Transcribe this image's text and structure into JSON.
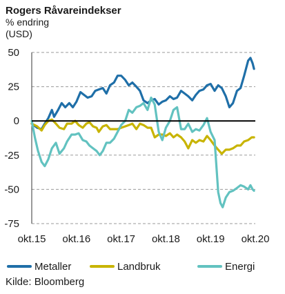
{
  "chart_data": {
    "type": "line",
    "title": "Rogers Råvareindekser",
    "subtitle_1": "% endring",
    "subtitle_2": "(USD)",
    "source": "Kilde: Bloomberg",
    "ylim": [
      -75,
      50
    ],
    "yticks": [
      "50",
      "25",
      "0",
      "-25",
      "-50",
      "-75"
    ],
    "ytick_values": [
      50,
      25,
      0,
      -25,
      -50,
      -75
    ],
    "xlim": [
      2015.83,
      2020.83
    ],
    "xticks": [
      "okt.15",
      "okt.16",
      "okt.17",
      "okt.18",
      "okt.19",
      "okt.20"
    ],
    "xtick_values": [
      2015.83,
      2016.83,
      2017.83,
      2018.83,
      2019.83,
      2020.83
    ],
    "grid": "horizontal dashed",
    "legend_position": "bottom",
    "series": [
      {
        "name": "Metaller",
        "color": "#1f6fa8",
        "points": [
          [
            2015.83,
            -2
          ],
          [
            2015.95,
            -5
          ],
          [
            2016.05,
            -6
          ],
          [
            2016.12,
            -2
          ],
          [
            2016.2,
            2
          ],
          [
            2016.28,
            8
          ],
          [
            2016.33,
            3
          ],
          [
            2016.42,
            8
          ],
          [
            2016.5,
            13
          ],
          [
            2016.58,
            10
          ],
          [
            2016.67,
            13
          ],
          [
            2016.75,
            10
          ],
          [
            2016.83,
            14
          ],
          [
            2016.92,
            21
          ],
          [
            2017.0,
            19
          ],
          [
            2017.08,
            17
          ],
          [
            2017.17,
            18
          ],
          [
            2017.25,
            22
          ],
          [
            2017.33,
            23
          ],
          [
            2017.42,
            24
          ],
          [
            2017.5,
            20
          ],
          [
            2017.58,
            26
          ],
          [
            2017.67,
            28
          ],
          [
            2017.75,
            33
          ],
          [
            2017.83,
            33
          ],
          [
            2017.92,
            30
          ],
          [
            2018.0,
            26
          ],
          [
            2018.08,
            28
          ],
          [
            2018.17,
            25
          ],
          [
            2018.25,
            22
          ],
          [
            2018.33,
            15
          ],
          [
            2018.42,
            13
          ],
          [
            2018.5,
            15
          ],
          [
            2018.58,
            16
          ],
          [
            2018.67,
            12
          ],
          [
            2018.75,
            14
          ],
          [
            2018.83,
            15
          ],
          [
            2018.92,
            18
          ],
          [
            2019.0,
            16
          ],
          [
            2019.08,
            17
          ],
          [
            2019.17,
            22
          ],
          [
            2019.25,
            20
          ],
          [
            2019.33,
            18
          ],
          [
            2019.42,
            15
          ],
          [
            2019.5,
            19
          ],
          [
            2019.58,
            22
          ],
          [
            2019.67,
            23
          ],
          [
            2019.75,
            26
          ],
          [
            2019.83,
            27
          ],
          [
            2019.92,
            22
          ],
          [
            2020.0,
            26
          ],
          [
            2020.08,
            24
          ],
          [
            2020.17,
            18
          ],
          [
            2020.25,
            10
          ],
          [
            2020.33,
            13
          ],
          [
            2020.42,
            22
          ],
          [
            2020.5,
            24
          ],
          [
            2020.58,
            33
          ],
          [
            2020.67,
            44
          ],
          [
            2020.72,
            46
          ],
          [
            2020.77,
            42
          ],
          [
            2020.8,
            38
          ]
        ]
      },
      {
        "name": "Landbruk",
        "color": "#c8b400",
        "points": [
          [
            2015.83,
            -2
          ],
          [
            2015.95,
            -4
          ],
          [
            2016.05,
            -7
          ],
          [
            2016.12,
            -3
          ],
          [
            2016.2,
            0
          ],
          [
            2016.28,
            1
          ],
          [
            2016.37,
            -2
          ],
          [
            2016.45,
            -5
          ],
          [
            2016.55,
            -6
          ],
          [
            2016.62,
            -2
          ],
          [
            2016.72,
            -2
          ],
          [
            2016.8,
            0
          ],
          [
            2016.88,
            -3
          ],
          [
            2016.97,
            -5
          ],
          [
            2017.05,
            -2
          ],
          [
            2017.12,
            -1
          ],
          [
            2017.2,
            -4
          ],
          [
            2017.28,
            -5
          ],
          [
            2017.33,
            -8
          ],
          [
            2017.42,
            -4
          ],
          [
            2017.5,
            -3
          ],
          [
            2017.58,
            -6
          ],
          [
            2017.67,
            -6
          ],
          [
            2017.75,
            -6
          ],
          [
            2017.83,
            -5
          ],
          [
            2017.92,
            -4
          ],
          [
            2018.0,
            -3
          ],
          [
            2018.08,
            -2
          ],
          [
            2018.17,
            -6
          ],
          [
            2018.25,
            -2
          ],
          [
            2018.33,
            -3
          ],
          [
            2018.42,
            -5
          ],
          [
            2018.5,
            -5
          ],
          [
            2018.58,
            -12
          ],
          [
            2018.67,
            -10
          ],
          [
            2018.75,
            -10
          ],
          [
            2018.83,
            -11
          ],
          [
            2018.92,
            -9
          ],
          [
            2019.0,
            -12
          ],
          [
            2019.08,
            -10
          ],
          [
            2019.17,
            -12
          ],
          [
            2019.25,
            -15
          ],
          [
            2019.33,
            -20
          ],
          [
            2019.42,
            -14
          ],
          [
            2019.5,
            -16
          ],
          [
            2019.58,
            -14
          ],
          [
            2019.67,
            -15
          ],
          [
            2019.75,
            -11
          ],
          [
            2019.83,
            -14
          ],
          [
            2019.92,
            -18
          ],
          [
            2020.0,
            -21
          ],
          [
            2020.08,
            -24
          ],
          [
            2020.17,
            -21
          ],
          [
            2020.25,
            -21
          ],
          [
            2020.33,
            -20
          ],
          [
            2020.42,
            -18
          ],
          [
            2020.5,
            -18
          ],
          [
            2020.58,
            -15
          ],
          [
            2020.67,
            -14
          ],
          [
            2020.75,
            -12
          ],
          [
            2020.8,
            -12
          ]
        ]
      },
      {
        "name": "Energi",
        "color": "#62c2c0",
        "points": [
          [
            2015.83,
            0
          ],
          [
            2015.9,
            -12
          ],
          [
            2015.97,
            -22
          ],
          [
            2016.05,
            -30
          ],
          [
            2016.12,
            -33
          ],
          [
            2016.2,
            -28
          ],
          [
            2016.28,
            -20
          ],
          [
            2016.37,
            -16
          ],
          [
            2016.45,
            -24
          ],
          [
            2016.55,
            -20
          ],
          [
            2016.62,
            -15
          ],
          [
            2016.72,
            -10
          ],
          [
            2016.8,
            -10
          ],
          [
            2016.88,
            -9
          ],
          [
            2016.97,
            -14
          ],
          [
            2017.05,
            -15
          ],
          [
            2017.12,
            -18
          ],
          [
            2017.2,
            -20
          ],
          [
            2017.28,
            -22
          ],
          [
            2017.35,
            -25
          ],
          [
            2017.42,
            -22
          ],
          [
            2017.5,
            -16
          ],
          [
            2017.58,
            -16
          ],
          [
            2017.67,
            -13
          ],
          [
            2017.75,
            -8
          ],
          [
            2017.83,
            -3
          ],
          [
            2017.92,
            0
          ],
          [
            2018.0,
            8
          ],
          [
            2018.08,
            6
          ],
          [
            2018.17,
            10
          ],
          [
            2018.25,
            11
          ],
          [
            2018.33,
            13
          ],
          [
            2018.42,
            8
          ],
          [
            2018.5,
            17
          ],
          [
            2018.58,
            12
          ],
          [
            2018.67,
            -8
          ],
          [
            2018.75,
            -14
          ],
          [
            2018.83,
            -5
          ],
          [
            2018.92,
            0
          ],
          [
            2019.0,
            8
          ],
          [
            2019.08,
            10
          ],
          [
            2019.17,
            -6
          ],
          [
            2019.25,
            -6
          ],
          [
            2019.33,
            -2
          ],
          [
            2019.42,
            -8
          ],
          [
            2019.5,
            -6
          ],
          [
            2019.58,
            -7
          ],
          [
            2019.67,
            -3
          ],
          [
            2019.75,
            2
          ],
          [
            2019.83,
            -8
          ],
          [
            2019.92,
            -14
          ],
          [
            2020.0,
            -52
          ],
          [
            2020.05,
            -60
          ],
          [
            2020.1,
            -63
          ],
          [
            2020.17,
            -56
          ],
          [
            2020.25,
            -52
          ],
          [
            2020.33,
            -51
          ],
          [
            2020.42,
            -49
          ],
          [
            2020.5,
            -47
          ],
          [
            2020.58,
            -48
          ],
          [
            2020.67,
            -50
          ],
          [
            2020.72,
            -47
          ],
          [
            2020.77,
            -50
          ],
          [
            2020.8,
            -51
          ]
        ]
      }
    ]
  }
}
